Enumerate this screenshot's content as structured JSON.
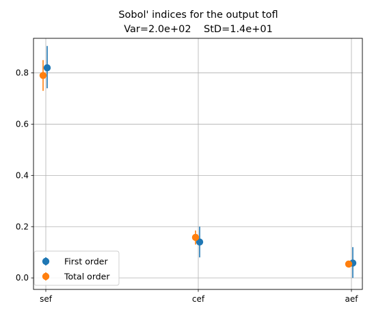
{
  "chart_data": {
    "type": "scatter",
    "title": "Sobol' indices for the output tofl",
    "subtitle": "Var=2.0e+02    StD=1.4e+01",
    "categories": [
      "sef",
      "cef",
      "aef"
    ],
    "yticks": [
      0.0,
      0.2,
      0.4,
      0.6,
      0.8
    ],
    "ytick_labels": [
      "0.0",
      "0.2",
      "0.4",
      "0.6",
      "0.8"
    ],
    "ylim": [
      -0.045,
      0.935
    ],
    "grid": true,
    "legend_position": "lower-left",
    "series": [
      {
        "name": "First order",
        "color": "#1f77b4",
        "values": [
          0.82,
          0.14,
          0.058
        ],
        "lower": [
          0.74,
          0.08,
          0.0
        ],
        "upper": [
          0.905,
          0.2,
          0.12
        ]
      },
      {
        "name": "Total order",
        "color": "#ff7f0e",
        "values": [
          0.79,
          0.158,
          0.054
        ],
        "lower": [
          0.73,
          0.13,
          0.045
        ],
        "upper": [
          0.85,
          0.185,
          0.062
        ]
      }
    ]
  }
}
